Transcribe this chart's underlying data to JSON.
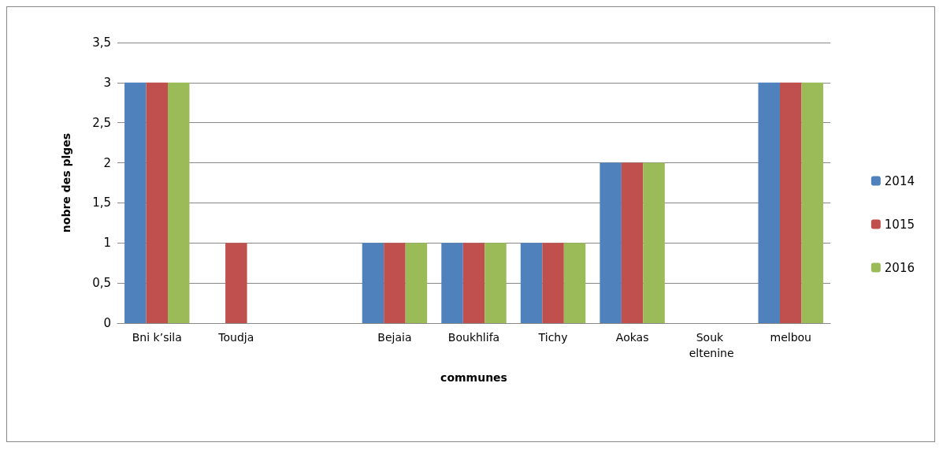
{
  "chart_data": {
    "type": "bar",
    "xlabel": "communes",
    "ylabel": "nobre des plges",
    "categories": [
      "Bni k’sila",
      "Toudja",
      null,
      "Bejaia",
      "Boukhlifa",
      "Tichy",
      "Aokas",
      "Souk eltenine",
      "melbou"
    ],
    "series": [
      {
        "name": "2014",
        "color": "#4f81bd",
        "values": [
          3,
          0,
          0,
          1,
          1,
          1,
          2,
          0,
          3
        ]
      },
      {
        "name": "1015",
        "color": "#c0504d",
        "values": [
          3,
          1,
          0,
          1,
          1,
          1,
          2,
          0,
          3
        ]
      },
      {
        "name": "2016",
        "color": "#9bbb59",
        "values": [
          3,
          0,
          0,
          1,
          1,
          1,
          2,
          0,
          3
        ]
      }
    ],
    "ylim": [
      0,
      3.5
    ],
    "yticks": [
      0,
      {
        "value": 0.5,
        "label": "0,5"
      },
      1,
      {
        "value": 1.5,
        "label": "1,5"
      },
      2,
      {
        "value": 2.5,
        "label": "2,5"
      },
      3,
      {
        "value": 3.5,
        "label": "3,5"
      }
    ],
    "grid": "y",
    "legend": "right"
  }
}
